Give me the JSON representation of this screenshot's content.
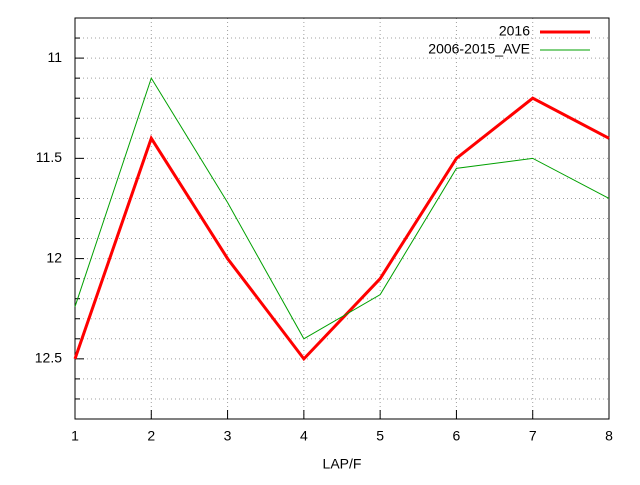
{
  "chart_data": {
    "type": "line",
    "x_label": "LAP/F",
    "x": [
      1,
      2,
      3,
      4,
      5,
      6,
      7,
      8
    ],
    "series": [
      {
        "name": "2016",
        "color": "#ff0000",
        "width": 3,
        "values": [
          12.5,
          11.4,
          12.0,
          12.5,
          12.1,
          11.5,
          11.2,
          11.4
        ]
      },
      {
        "name": "2006-2015_AVE",
        "color": "#00a000",
        "width": 1,
        "values": [
          12.24,
          11.1,
          11.72,
          12.4,
          12.18,
          11.55,
          11.5,
          11.7
        ]
      }
    ],
    "xlim": [
      1,
      8
    ],
    "xticks": [
      1,
      2,
      3,
      4,
      5,
      6,
      7,
      8
    ],
    "ylim": [
      10.8,
      12.8
    ],
    "yticks": [
      11,
      11.5,
      12,
      12.5
    ],
    "yminorticks": [
      10.9,
      11.1,
      11.2,
      11.3,
      11.4,
      11.6,
      11.7,
      11.8,
      11.9,
      12.1,
      12.2,
      12.3,
      12.4,
      12.6,
      12.7
    ],
    "y_inverted": true,
    "grid": true,
    "legend": "top-right"
  }
}
